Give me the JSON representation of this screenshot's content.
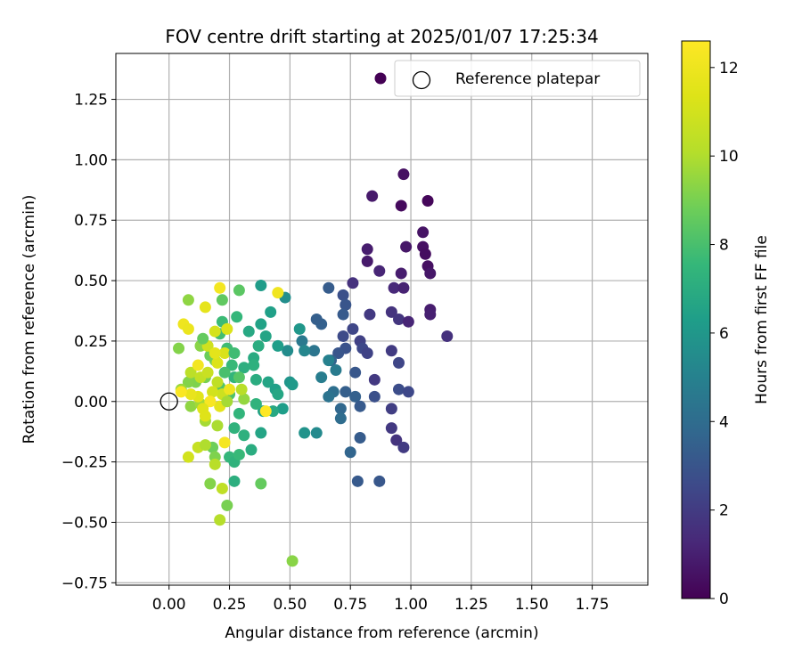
{
  "chart_data": {
    "type": "scatter",
    "title": "FOV centre drift starting at 2025/01/07 17:25:34",
    "xlabel": "Angular distance from reference (arcmin)",
    "ylabel": "Rotation from reference (arcmin)",
    "xlim": [
      -0.22,
      1.98
    ],
    "ylim": [
      -0.76,
      1.44
    ],
    "xticks": [
      "0.00",
      "0.25",
      "0.50",
      "0.75",
      "1.00",
      "1.25",
      "1.50",
      "1.75"
    ],
    "xtick_values": [
      0,
      0.25,
      0.5,
      0.75,
      1.0,
      1.25,
      1.5,
      1.75
    ],
    "yticks": [
      "−0.75",
      "−0.50",
      "−0.25",
      "0.00",
      "0.25",
      "0.50",
      "0.75",
      "1.00",
      "1.25"
    ],
    "ytick_values": [
      -0.75,
      -0.5,
      -0.25,
      0,
      0.25,
      0.5,
      0.75,
      1.0,
      1.25
    ],
    "grid": true,
    "legend": {
      "placement": "top-right",
      "entries": [
        {
          "label": "",
          "marker": "filled-circle",
          "color": "#440154"
        },
        {
          "label": "Reference platepar",
          "marker": "open-circle",
          "color": "#000000"
        }
      ]
    },
    "colorbar": {
      "label": "Hours from first FF file",
      "range": [
        0,
        12.6
      ],
      "ticks": [
        "0",
        "2",
        "4",
        "6",
        "8",
        "10",
        "12"
      ],
      "tick_values": [
        0,
        2,
        4,
        6,
        8,
        10,
        12
      ],
      "colormap": "viridis"
    },
    "reference_point": {
      "x": 0.0,
      "y": 0.0
    },
    "points": [
      [
        0.97,
        0.94,
        0.5
      ],
      [
        0.84,
        0.85,
        0.8
      ],
      [
        0.96,
        0.81,
        0.3
      ],
      [
        1.07,
        0.83,
        0.2
      ],
      [
        1.05,
        0.7,
        0.6
      ],
      [
        0.82,
        0.63,
        0.9
      ],
      [
        0.98,
        0.64,
        0.7
      ],
      [
        1.05,
        0.64,
        0.5
      ],
      [
        1.06,
        0.61,
        0.4
      ],
      [
        0.82,
        0.58,
        0.8
      ],
      [
        1.07,
        0.56,
        0.5
      ],
      [
        0.87,
        0.54,
        1.2
      ],
      [
        0.96,
        0.53,
        0.9
      ],
      [
        1.08,
        0.53,
        0.7
      ],
      [
        0.76,
        0.49,
        1.6
      ],
      [
        0.93,
        0.47,
        1.3
      ],
      [
        0.97,
        0.47,
        1.1
      ],
      [
        1.08,
        0.38,
        0.9
      ],
      [
        1.08,
        0.36,
        1.0
      ],
      [
        0.83,
        0.36,
        1.9
      ],
      [
        0.92,
        0.37,
        1.7
      ],
      [
        0.95,
        0.34,
        1.8
      ],
      [
        0.99,
        0.33,
        1.2
      ],
      [
        1.15,
        0.27,
        1.6
      ],
      [
        0.72,
        0.44,
        2.8
      ],
      [
        0.73,
        0.4,
        3.0
      ],
      [
        0.66,
        0.47,
        3.3
      ],
      [
        0.72,
        0.36,
        3.2
      ],
      [
        0.63,
        0.32,
        3.5
      ],
      [
        0.61,
        0.34,
        3.4
      ],
      [
        0.76,
        0.3,
        2.4
      ],
      [
        0.72,
        0.27,
        2.6
      ],
      [
        0.79,
        0.25,
        2.2
      ],
      [
        0.73,
        0.22,
        2.9
      ],
      [
        0.7,
        0.2,
        3.0
      ],
      [
        0.8,
        0.22,
        2.5
      ],
      [
        0.67,
        0.17,
        3.6
      ],
      [
        0.82,
        0.2,
        2.3
      ],
      [
        0.92,
        0.21,
        2.0
      ],
      [
        0.95,
        0.16,
        2.4
      ],
      [
        0.77,
        0.12,
        3.1
      ],
      [
        0.85,
        0.09,
        1.9
      ],
      [
        0.73,
        0.04,
        3.4
      ],
      [
        0.68,
        0.04,
        4.1
      ],
      [
        0.95,
        0.05,
        2.7
      ],
      [
        0.99,
        0.04,
        2.5
      ],
      [
        0.85,
        0.02,
        2.8
      ],
      [
        0.66,
        0.02,
        4.3
      ],
      [
        0.77,
        0.02,
        3.5
      ],
      [
        0.79,
        -0.02,
        3.2
      ],
      [
        0.92,
        -0.03,
        2.1
      ],
      [
        0.71,
        -0.03,
        3.8
      ],
      [
        0.71,
        -0.07,
        4.0
      ],
      [
        0.92,
        -0.11,
        1.9
      ],
      [
        0.94,
        -0.16,
        1.7
      ],
      [
        0.97,
        -0.19,
        2.0
      ],
      [
        0.79,
        -0.15,
        3.3
      ],
      [
        0.75,
        -0.21,
        3.7
      ],
      [
        0.78,
        -0.33,
        3.2
      ],
      [
        0.87,
        -0.33,
        3.1
      ],
      [
        0.6,
        0.21,
        4.4
      ],
      [
        0.55,
        0.25,
        4.6
      ],
      [
        0.63,
        0.1,
        4.8
      ],
      [
        0.66,
        0.17,
        5.0
      ],
      [
        0.69,
        0.13,
        4.7
      ],
      [
        0.56,
        0.21,
        5.2
      ],
      [
        0.49,
        0.21,
        5.5
      ],
      [
        0.48,
        0.43,
        5.6
      ],
      [
        0.54,
        0.3,
        6.0
      ],
      [
        0.56,
        -0.13,
        5.8
      ],
      [
        0.61,
        -0.13,
        5.4
      ],
      [
        0.5,
        0.08,
        5.9
      ],
      [
        0.51,
        0.07,
        6.1
      ],
      [
        0.45,
        0.23,
        6.3
      ],
      [
        0.38,
        0.48,
        6.2
      ],
      [
        0.42,
        0.37,
        6.4
      ],
      [
        0.38,
        0.32,
        6.5
      ],
      [
        0.4,
        0.27,
        6.6
      ],
      [
        0.33,
        0.29,
        6.8
      ],
      [
        0.37,
        0.23,
        7.0
      ],
      [
        0.35,
        0.18,
        6.9
      ],
      [
        0.35,
        0.15,
        7.2
      ],
      [
        0.31,
        0.14,
        7.1
      ],
      [
        0.36,
        0.09,
        7.0
      ],
      [
        0.41,
        0.08,
        6.6
      ],
      [
        0.44,
        0.05,
        6.4
      ],
      [
        0.45,
        0.03,
        6.7
      ],
      [
        0.47,
        -0.03,
        6.3
      ],
      [
        0.39,
        -0.04,
        6.5
      ],
      [
        0.36,
        -0.01,
        7.3
      ],
      [
        0.43,
        -0.04,
        6.8
      ],
      [
        0.38,
        -0.13,
        6.6
      ],
      [
        0.34,
        -0.2,
        7.0
      ],
      [
        0.31,
        -0.14,
        7.2
      ],
      [
        0.29,
        -0.05,
        7.4
      ],
      [
        0.27,
        -0.11,
        7.3
      ],
      [
        0.25,
        -0.23,
        7.5
      ],
      [
        0.27,
        -0.25,
        7.3
      ],
      [
        0.27,
        -0.33,
        7.1
      ],
      [
        0.29,
        -0.22,
        7.6
      ],
      [
        0.28,
        0.35,
        7.5
      ],
      [
        0.22,
        0.33,
        7.7
      ],
      [
        0.21,
        0.28,
        7.9
      ],
      [
        0.24,
        0.22,
        7.8
      ],
      [
        0.26,
        0.15,
        7.6
      ],
      [
        0.27,
        0.1,
        7.4
      ],
      [
        0.23,
        0.12,
        8.0
      ],
      [
        0.21,
        0.06,
        8.2
      ],
      [
        0.25,
        0.03,
        8.1
      ],
      [
        0.29,
        0.1,
        8.3
      ],
      [
        0.29,
        0.46,
        8.4
      ],
      [
        0.22,
        0.42,
        8.5
      ],
      [
        0.38,
        -0.34,
        8.6
      ],
      [
        0.17,
        0.19,
        8.7
      ],
      [
        0.15,
        0.1,
        9.0
      ],
      [
        0.11,
        0.08,
        9.1
      ],
      [
        0.19,
        0.17,
        8.9
      ],
      [
        0.13,
        0.23,
        9.3
      ],
      [
        0.04,
        0.22,
        9.2
      ],
      [
        0.08,
        0.42,
        9.4
      ],
      [
        0.08,
        0.08,
        9.2
      ],
      [
        0.05,
        0.05,
        9.6
      ],
      [
        0.09,
        -0.02,
        9.4
      ],
      [
        0.13,
        -0.01,
        9.7
      ],
      [
        0.18,
        -0.19,
        8.8
      ],
      [
        0.19,
        -0.23,
        9.1
      ],
      [
        0.17,
        -0.34,
        9.2
      ],
      [
        0.24,
        -0.43,
        9.0
      ],
      [
        0.51,
        -0.66,
        9.3
      ],
      [
        0.15,
        -0.08,
        9.8
      ],
      [
        0.2,
        -0.1,
        9.9
      ],
      [
        0.19,
        -0.26,
        10.2
      ],
      [
        0.22,
        -0.36,
        10.4
      ],
      [
        0.21,
        -0.49,
        10.1
      ],
      [
        0.12,
        -0.19,
        10.6
      ],
      [
        0.15,
        -0.18,
        10.0
      ],
      [
        0.09,
        0.12,
        10.3
      ],
      [
        0.13,
        0.1,
        10.5
      ],
      [
        0.16,
        0.12,
        10.7
      ],
      [
        0.2,
        0.08,
        10.4
      ],
      [
        0.22,
        0.03,
        10.8
      ],
      [
        0.18,
        0.04,
        11.0
      ],
      [
        0.16,
        0.23,
        10.9
      ],
      [
        0.19,
        0.29,
        11.1
      ],
      [
        0.2,
        0.16,
        11.3
      ],
      [
        0.23,
        0.2,
        11.2
      ],
      [
        0.15,
        -0.06,
        11.4
      ],
      [
        0.21,
        -0.02,
        11.6
      ],
      [
        0.12,
        0.02,
        11.5
      ],
      [
        0.09,
        0.03,
        11.8
      ],
      [
        0.06,
        0.32,
        12.0
      ],
      [
        0.08,
        0.3,
        11.9
      ],
      [
        0.15,
        0.39,
        11.7
      ],
      [
        0.21,
        0.47,
        12.2
      ],
      [
        0.45,
        0.45,
        12.1
      ],
      [
        0.24,
        0.3,
        11.3
      ],
      [
        0.08,
        -0.23,
        11.0
      ],
      [
        0.23,
        -0.17,
        12.3
      ],
      [
        0.17,
        0.0,
        12.4
      ],
      [
        0.05,
        0.04,
        12.5
      ],
      [
        0.4,
        -0.04,
        12.6
      ],
      [
        0.12,
        0.15,
        12.2
      ],
      [
        0.25,
        0.05,
        12.0
      ],
      [
        0.19,
        0.2,
        11.6
      ],
      [
        0.14,
        -0.03,
        11.4
      ],
      [
        0.31,
        0.01,
        9.5
      ],
      [
        0.3,
        0.05,
        10.2
      ],
      [
        0.24,
        0.0,
        9.8
      ],
      [
        0.14,
        0.26,
        8.6
      ],
      [
        0.27,
        0.2,
        7.8
      ]
    ]
  }
}
